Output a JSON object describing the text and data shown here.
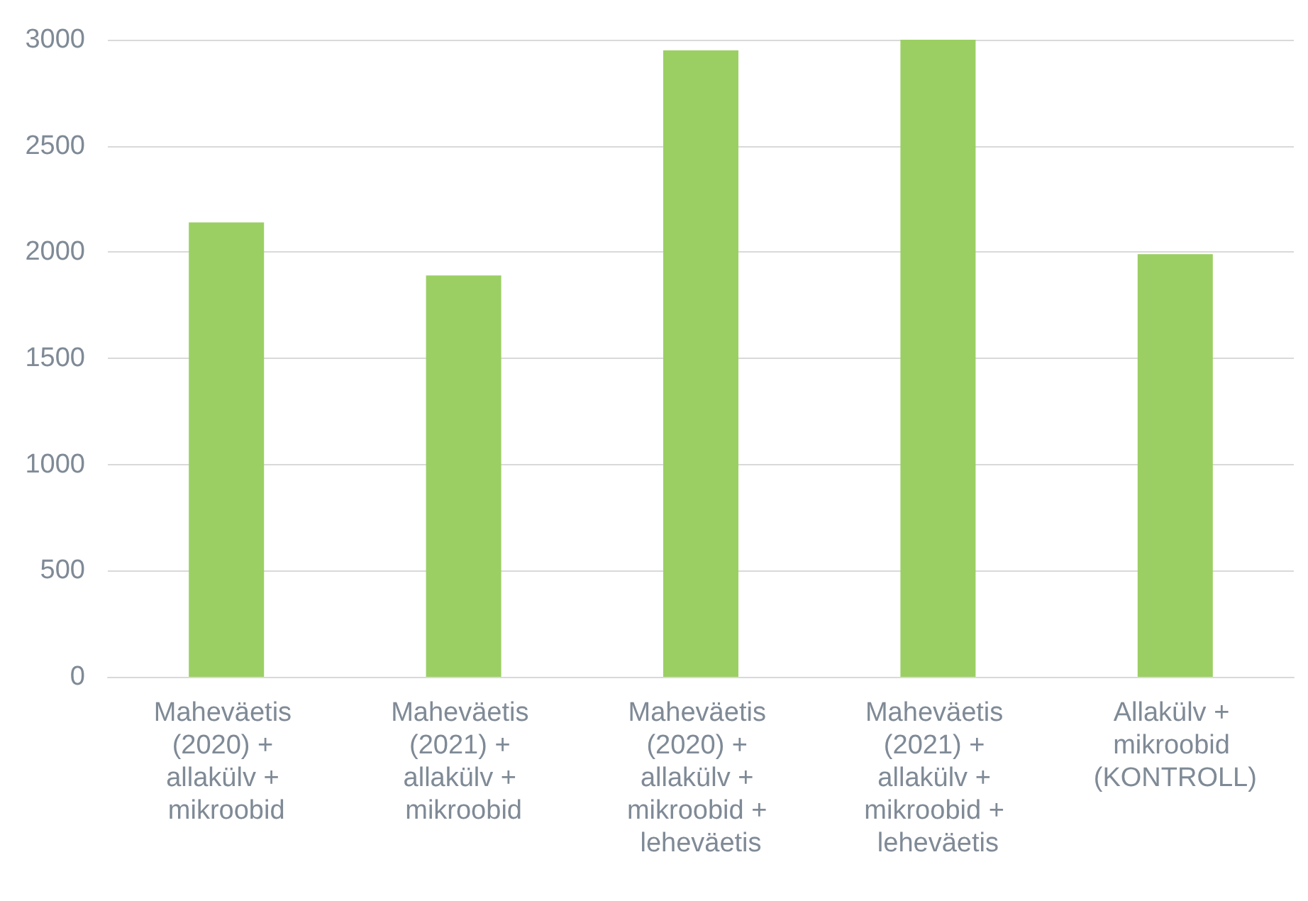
{
  "chart_data": {
    "type": "bar",
    "categories": [
      "Maheväetis (2020) + allakülv + mikroobid",
      "Maheväetis (2021) + allakülv + mikroobid",
      "Maheväetis (2020) + allakülv + mikroobid + leheväetis",
      "Maheväetis (2021) + allakülv + mikroobid + leheväetis",
      "Allakülv + mikroobid (KONTROLL)"
    ],
    "values": [
      2140,
      1890,
      2950,
      3000,
      1990
    ],
    "color": "#9bcf63",
    "ylim": [
      0,
      3000
    ],
    "yticks": [
      0,
      500,
      1000,
      1500,
      2000,
      2500,
      3000
    ],
    "grid": "y"
  }
}
